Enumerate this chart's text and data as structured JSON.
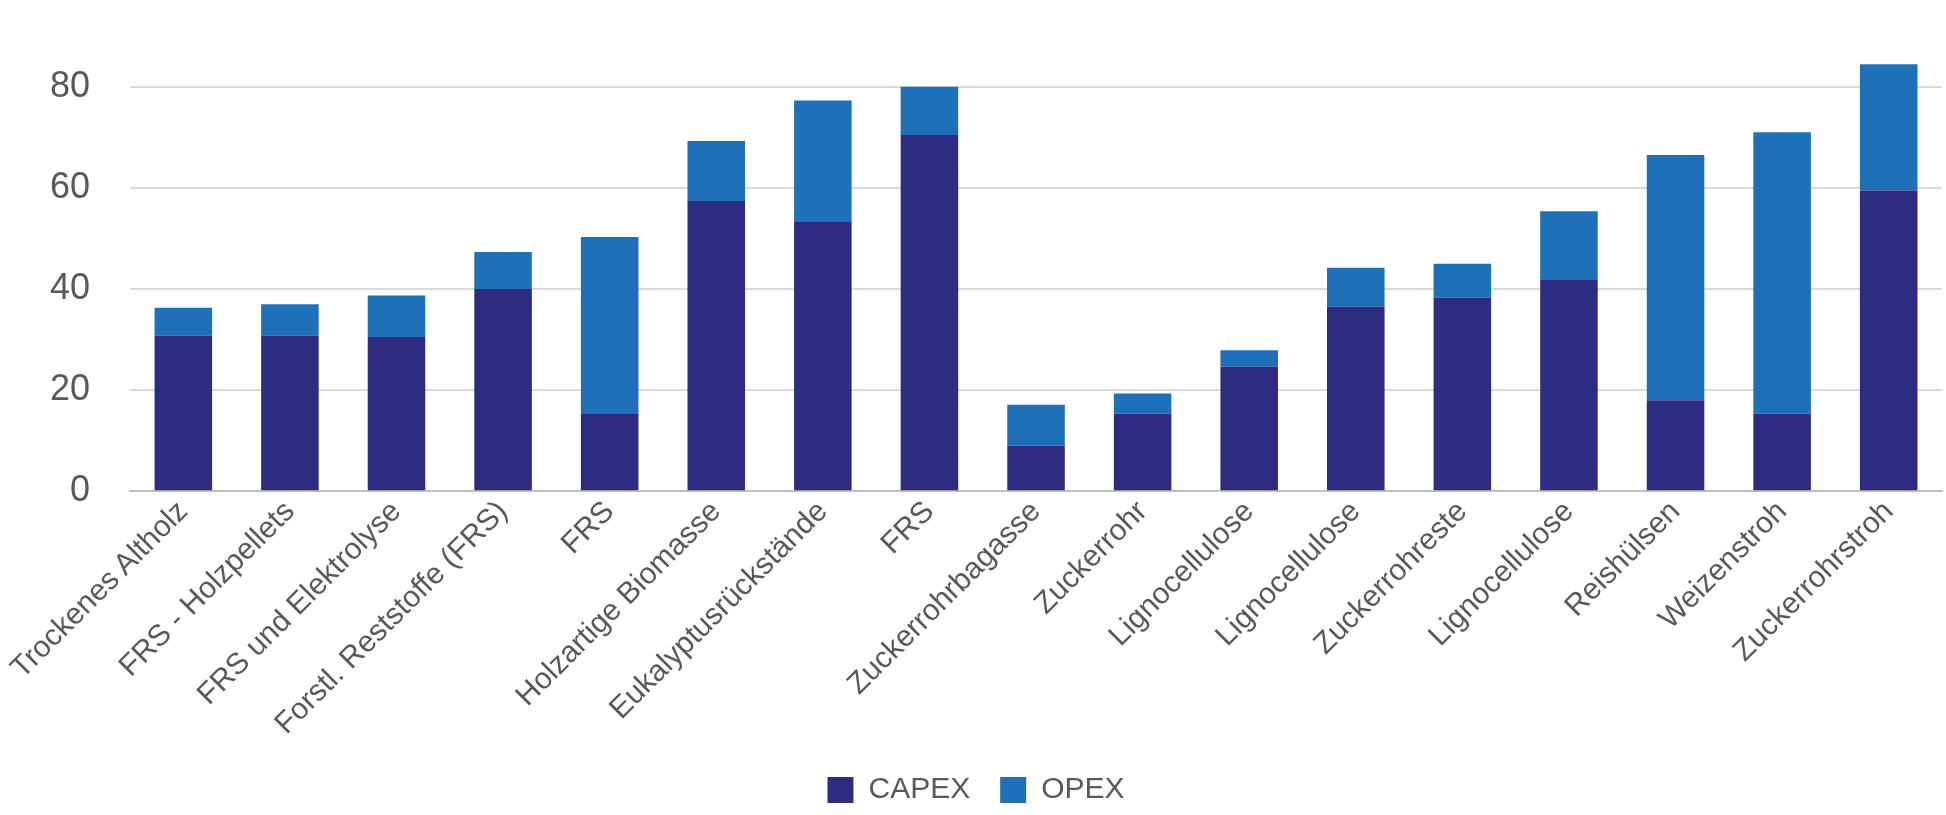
{
  "chart_data": {
    "type": "bar",
    "stacked": true,
    "categories": [
      "Trockenes Altholz",
      "FRS - Holzpellets",
      "FRS und Elektrolyse",
      "Forstl. Reststoffe (FRS)",
      "FRS",
      "Holzartige Biomasse",
      "Eukalyptusrückstände",
      "FRS",
      "Zuckerrohrbagasse",
      "Zuckerrohr",
      "Lignocellulose",
      "Lignocellulose",
      "Zuckerrohreste",
      "Lignocellulose",
      "Reishülsen",
      "Weizenstroh",
      "Zuckerrohrstroh"
    ],
    "series": [
      {
        "name": "CAPEX",
        "color": "#2e2c80",
        "values": [
          30.8,
          30.8,
          30.5,
          40,
          15.4,
          57.4,
          53.4,
          70.5,
          9,
          15.3,
          24.6,
          36.5,
          38.3,
          41.8,
          18,
          15.3,
          59.5
        ]
      },
      {
        "name": "OPEX",
        "color": "#1e70b8",
        "values": [
          5.5,
          6.2,
          8.2,
          7.3,
          34.9,
          11.9,
          23.9,
          9.5,
          8.1,
          4,
          3.3,
          7.7,
          6.7,
          13.6,
          48.5,
          55.7,
          25
        ]
      }
    ],
    "ylim": [
      0,
      85
    ],
    "yticks": [
      0,
      20,
      40,
      60,
      80
    ],
    "grid": "y",
    "legend": "bottom"
  }
}
